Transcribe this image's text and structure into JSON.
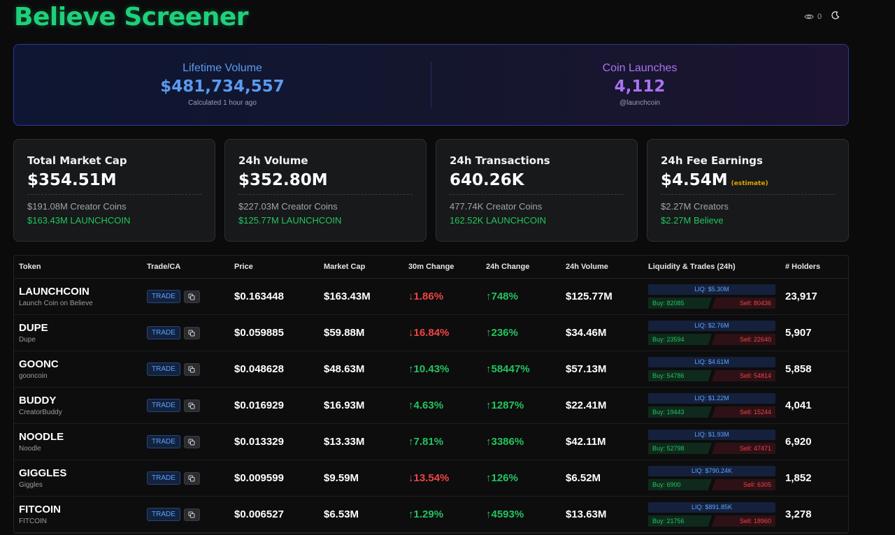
{
  "header": {
    "title": "Believe Screener",
    "view_count": "0",
    "eye_icon": "eye-icon",
    "theme_icon": "moon-icon"
  },
  "hero": {
    "volume": {
      "label": "Lifetime Volume",
      "value": "$481,734,557",
      "sub": "Calculated 1 hour ago",
      "color": "#5b9bf0"
    },
    "launches": {
      "label": "Coin Launches",
      "value": "4,112",
      "sub": "@launchcoin",
      "color": "#a873f0"
    }
  },
  "cards": [
    {
      "label": "Total Market Cap",
      "value": "$354.51M",
      "estimate": "",
      "line1": "$191.08M Creator Coins",
      "line2": "$163.43M LAUNCHCOIN"
    },
    {
      "label": "24h Volume",
      "value": "$352.80M",
      "estimate": "",
      "line1": "$227.03M Creator Coins",
      "line2": "$125.77M LAUNCHCOIN"
    },
    {
      "label": "24h Transactions",
      "value": "640.26K",
      "estimate": "",
      "line1": "477.74K Creator Coins",
      "line2": "162.52K LAUNCHCOIN"
    },
    {
      "label": "24h Fee Earnings",
      "value": "$4.54M",
      "estimate": "(estimate)",
      "line1": "$2.27M Creators",
      "line2": "$2.27M Believe"
    }
  ],
  "table": {
    "headers": [
      "Token",
      "Trade/CA",
      "Price",
      "Market Cap",
      "30m Change",
      "24h Change",
      "24h Volume",
      "Liquidity & Trades (24h)",
      "# Holders"
    ],
    "trade_label": "TRADE",
    "rows": [
      {
        "name": "LAUNCHCOIN",
        "sub": "Launch Coin on Believe",
        "price": "$0.163448",
        "mcap": "$163.43M",
        "ch30": "↓1.86%",
        "ch30_dir": "down",
        "ch24": "↑748%",
        "ch24_dir": "up",
        "vol": "$125.77M",
        "liq": "LIQ: $5.30M",
        "buy": "Buy: 82085",
        "sell": "Sell: 80436",
        "holders": "23,917"
      },
      {
        "name": "DUPE",
        "sub": "Dupe",
        "price": "$0.059885",
        "mcap": "$59.88M",
        "ch30": "↓16.84%",
        "ch30_dir": "down",
        "ch24": "↑236%",
        "ch24_dir": "up",
        "vol": "$34.46M",
        "liq": "LIQ: $2.76M",
        "buy": "Buy: 23594",
        "sell": "Sell: 22640",
        "holders": "5,907"
      },
      {
        "name": "GOONC",
        "sub": "gooncoin",
        "price": "$0.048628",
        "mcap": "$48.63M",
        "ch30": "↑10.43%",
        "ch30_dir": "up",
        "ch24": "↑58447%",
        "ch24_dir": "up",
        "vol": "$57.13M",
        "liq": "LIQ: $4.61M",
        "buy": "Buy: 54786",
        "sell": "Sell: 54814",
        "holders": "5,858"
      },
      {
        "name": "BUDDY",
        "sub": "CreatorBuddy",
        "price": "$0.016929",
        "mcap": "$16.93M",
        "ch30": "↑4.63%",
        "ch30_dir": "up",
        "ch24": "↑1287%",
        "ch24_dir": "up",
        "vol": "$22.41M",
        "liq": "LIQ: $1.22M",
        "buy": "Buy: 19443",
        "sell": "Sell: 15244",
        "holders": "4,041"
      },
      {
        "name": "NOODLE",
        "sub": "Noodle",
        "price": "$0.013329",
        "mcap": "$13.33M",
        "ch30": "↑7.81%",
        "ch30_dir": "up",
        "ch24": "↑3386%",
        "ch24_dir": "up",
        "vol": "$42.11M",
        "liq": "LIQ: $1.93M",
        "buy": "Buy: 52798",
        "sell": "Sell: 47471",
        "holders": "6,920"
      },
      {
        "name": "GIGGLES",
        "sub": "Giggles",
        "price": "$0.009599",
        "mcap": "$9.59M",
        "ch30": "↓13.54%",
        "ch30_dir": "down",
        "ch24": "↑126%",
        "ch24_dir": "up",
        "vol": "$6.52M",
        "liq": "LIQ: $790.24K",
        "buy": "Buy: 6900",
        "sell": "Sell: 6305",
        "holders": "1,852"
      },
      {
        "name": "FITCOIN",
        "sub": "FITCOIN",
        "price": "$0.006527",
        "mcap": "$6.53M",
        "ch30": "↑1.29%",
        "ch30_dir": "up",
        "ch24": "↑4593%",
        "ch24_dir": "up",
        "vol": "$13.63M",
        "liq": "LIQ: $891.85K",
        "buy": "Buy: 21756",
        "sell": "Sell: 18960",
        "holders": "3,278"
      }
    ]
  }
}
